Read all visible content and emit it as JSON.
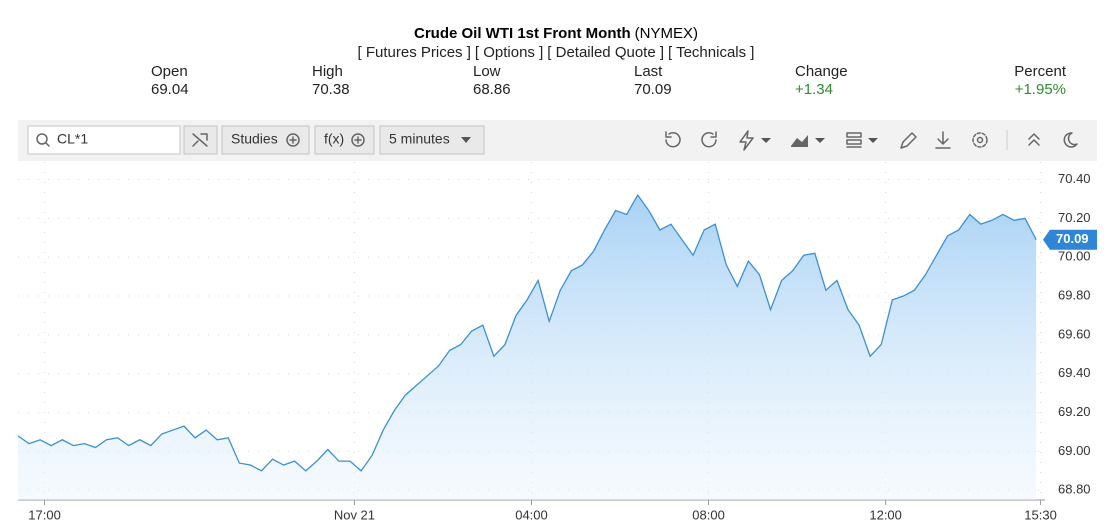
{
  "header": {
    "title": "Crude Oil WTI 1st Front Month",
    "exchange": "(NYMEX)",
    "links": [
      "[ Futures Prices ]",
      "[ Options ]",
      "[ Detailed Quote ]",
      "[ Technicals ]"
    ]
  },
  "quote": [
    {
      "label": "Open",
      "value": "69.04"
    },
    {
      "label": "High",
      "value": "70.38"
    },
    {
      "label": "Low",
      "value": "68.86"
    },
    {
      "label": "Last",
      "value": "70.09"
    },
    {
      "label": "Change",
      "value": "+1.34"
    },
    {
      "label": "Percent",
      "value": "+1.95%"
    }
  ],
  "toolbar": {
    "symbol": "CL*1",
    "studies": "Studies",
    "function": "f(x)",
    "interval": "5 minutes"
  },
  "chart_data": {
    "type": "area",
    "color": "#3d8fd6",
    "grid": true,
    "x": [
      -0.6,
      -0.35,
      -0.1,
      0.15,
      0.4,
      0.65,
      0.9,
      1.15,
      1.4,
      1.65,
      1.9,
      2.15,
      2.4,
      2.65,
      2.9,
      3.15,
      3.4,
      3.65,
      3.9,
      4.15,
      4.4,
      4.65,
      4.9,
      5.15,
      5.4,
      5.65,
      5.9,
      6.15,
      6.4,
      6.65,
      6.9,
      7.15,
      7.4,
      7.65,
      7.9,
      8.15,
      8.4,
      8.65,
      8.9,
      9.15,
      9.4,
      9.65,
      9.9,
      10.15,
      10.4,
      10.65,
      10.9,
      11.15,
      11.4,
      11.65,
      11.9,
      12.15,
      12.4,
      12.65,
      12.9,
      13.15,
      13.4,
      13.65,
      13.9,
      14.15,
      14.4,
      14.65,
      14.9,
      15.15,
      15.4,
      15.65,
      15.9,
      16.15,
      16.4,
      16.65,
      16.9,
      17.15,
      17.4,
      17.65,
      17.9,
      18.15,
      18.4,
      18.65,
      18.9,
      19.15,
      19.4,
      19.65,
      19.9,
      20.15,
      20.4,
      20.65,
      20.9,
      21.15,
      21.4,
      21.65,
      21.9,
      22.15,
      22.4
    ],
    "values": [
      69.08,
      69.04,
      69.06,
      69.03,
      69.06,
      69.03,
      69.04,
      69.02,
      69.06,
      69.07,
      69.03,
      69.06,
      69.03,
      69.09,
      69.11,
      69.13,
      69.07,
      69.11,
      69.06,
      69.07,
      68.94,
      68.93,
      68.9,
      68.96,
      68.93,
      68.95,
      68.9,
      68.95,
      69.01,
      68.95,
      68.95,
      68.9,
      68.98,
      69.11,
      69.21,
      69.29,
      69.34,
      69.39,
      69.44,
      69.52,
      69.55,
      69.62,
      69.65,
      69.49,
      69.55,
      69.7,
      69.78,
      69.88,
      69.67,
      69.83,
      69.93,
      69.96,
      70.03,
      70.14,
      70.24,
      70.22,
      70.32,
      70.24,
      70.14,
      70.17,
      70.09,
      70.01,
      70.14,
      70.17,
      69.96,
      69.85,
      69.98,
      69.91,
      69.73,
      69.88,
      69.93,
      70.01,
      70.02,
      69.83,
      69.88,
      69.73,
      69.65,
      69.49,
      69.55,
      69.78,
      69.8,
      69.83,
      69.91,
      70.01,
      70.11,
      70.14,
      70.22,
      70.17,
      70.19,
      70.22,
      70.19,
      70.2,
      70.09
    ],
    "xlim": [
      -0.6,
      22.6
    ],
    "xticks": [
      {
        "value": 0,
        "label": "17:00"
      },
      {
        "value": 7,
        "label": "Nov 21"
      },
      {
        "value": 11,
        "label": "04:00"
      },
      {
        "value": 15,
        "label": "08:00"
      },
      {
        "value": 19,
        "label": "12:00"
      },
      {
        "value": 22.5,
        "label": "15:30"
      }
    ],
    "ylim": [
      68.75,
      70.49
    ],
    "yticks": [
      {
        "value": 68.8,
        "label": "68.80"
      },
      {
        "value": 69.0,
        "label": "69.00"
      },
      {
        "value": 69.2,
        "label": "69.20"
      },
      {
        "value": 69.4,
        "label": "69.40"
      },
      {
        "value": 69.6,
        "label": "69.60"
      },
      {
        "value": 69.8,
        "label": "69.80"
      },
      {
        "value": 70.0,
        "label": "70.00"
      },
      {
        "value": 70.2,
        "label": "70.20"
      },
      {
        "value": 70.4,
        "label": "70.40"
      }
    ],
    "last_price": 70.09
  }
}
